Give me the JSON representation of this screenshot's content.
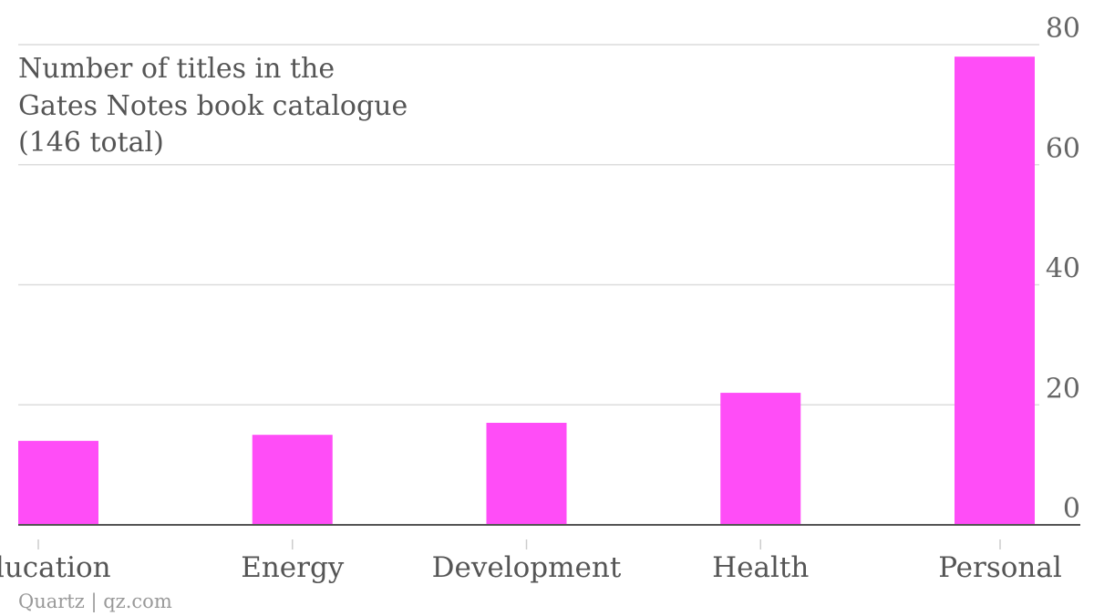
{
  "colors": {
    "bar": "#ff4df7"
  },
  "chart_data": {
    "type": "bar",
    "title_lines": [
      "Number of titles in the",
      "Gates Notes book catalogue",
      "(146 total)"
    ],
    "categories": [
      "Education",
      "Energy",
      "Development",
      "Health",
      "Personal"
    ],
    "values": [
      14,
      15,
      17,
      22,
      78
    ],
    "ylim": [
      0,
      80
    ],
    "yticks": [
      "0",
      "20",
      "40",
      "60",
      "80"
    ],
    "y_axis_position": "right",
    "grid": true,
    "source": "Quartz | qz.com"
  }
}
